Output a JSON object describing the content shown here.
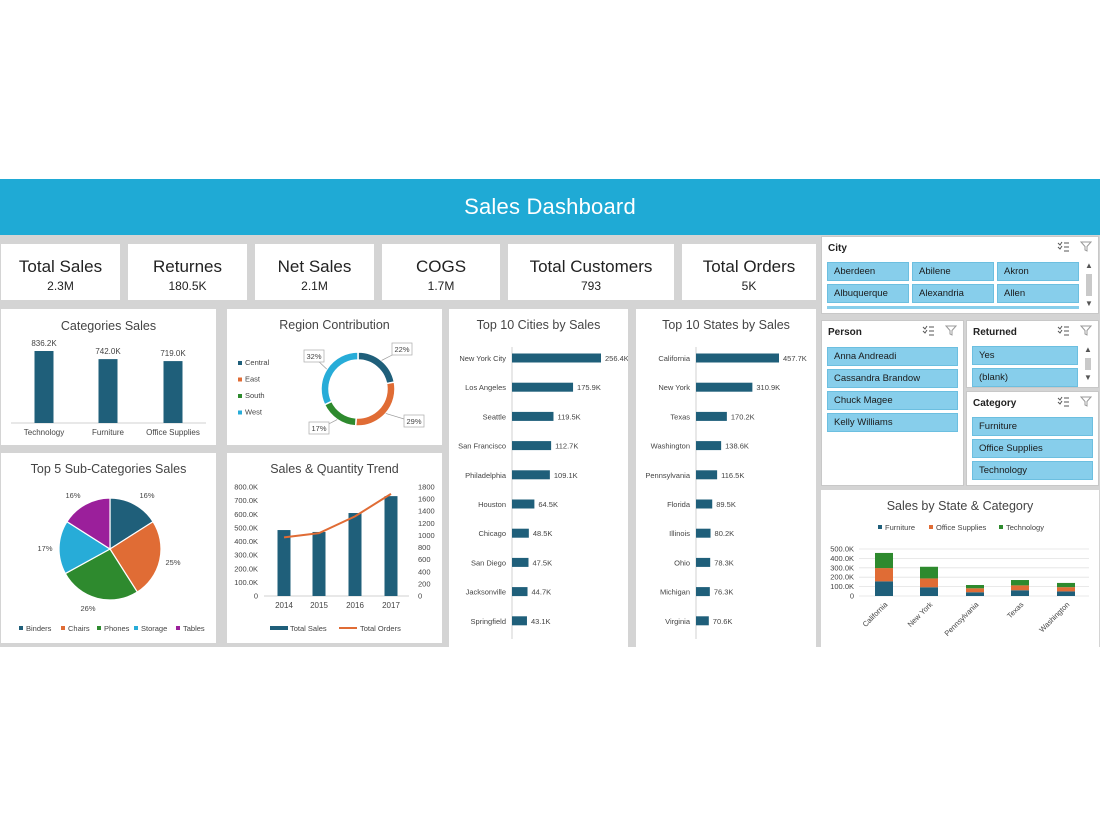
{
  "header": {
    "title": "Sales Dashboard"
  },
  "kpis": [
    {
      "label": "Total Sales",
      "value": "2.3M"
    },
    {
      "label": "Returnes",
      "value": "180.5K"
    },
    {
      "label": "Net Sales",
      "value": "2.1M"
    },
    {
      "label": "COGS",
      "value": "1.7M"
    },
    {
      "label": "Total Customers",
      "value": "793"
    },
    {
      "label": "Total Orders",
      "value": "5K"
    }
  ],
  "colors": {
    "banner": "#1faad5",
    "bar": "#1f5f7a",
    "orange": "#e06c35",
    "green": "#2e8a2e",
    "light_blue": "#27acd8",
    "purple": "#9b1f9b",
    "slicer": "#87ceeb"
  },
  "charts": {
    "categories": {
      "title": "Categories Sales"
    },
    "region": {
      "title": "Region Contribution"
    },
    "cities": {
      "title": "Top 10 Cities by Sales"
    },
    "states": {
      "title": "Top 10 States by Sales"
    },
    "subcats": {
      "title": "Top 5 Sub-Categories Sales"
    },
    "trend": {
      "title": "Sales & Quantity Trend"
    },
    "state_cat": {
      "title": "Sales by State & Category"
    }
  },
  "chart_data": [
    {
      "id": "categories",
      "type": "bar",
      "title": "Categories Sales",
      "categories": [
        "Technology",
        "Furniture",
        "Office Supplies"
      ],
      "values": [
        836.2,
        742.0,
        719.0
      ],
      "labels": [
        "836.2K",
        "742.0K",
        "719.0K"
      ]
    },
    {
      "id": "region",
      "type": "pie",
      "title": "Region Contribution",
      "categories": [
        "Central",
        "East",
        "South",
        "West"
      ],
      "values": [
        22,
        29,
        17,
        32
      ],
      "labels": [
        "22%",
        "29%",
        "17%",
        "32%"
      ]
    },
    {
      "id": "cities",
      "type": "bar",
      "title": "Top 10 Cities by Sales",
      "categories": [
        "New York City",
        "Los Angeles",
        "Seattle",
        "San Francisco",
        "Philadelphia",
        "Houston",
        "Chicago",
        "San Diego",
        "Jacksonville",
        "Springfield"
      ],
      "values": [
        256.4,
        175.9,
        119.5,
        112.7,
        109.1,
        64.5,
        48.5,
        47.5,
        44.7,
        43.1
      ],
      "labels": [
        "256.4K",
        "175.9K",
        "119.5K",
        "112.7K",
        "109.1K",
        "64.5K",
        "48.5K",
        "47.5K",
        "44.7K",
        "43.1K"
      ]
    },
    {
      "id": "states",
      "type": "bar",
      "title": "Top 10 States by Sales",
      "categories": [
        "California",
        "New York",
        "Texas",
        "Washington",
        "Pennsylvania",
        "Florida",
        "Illinois",
        "Ohio",
        "Michigan",
        "Virginia"
      ],
      "values": [
        457.7,
        310.9,
        170.2,
        138.6,
        116.5,
        89.5,
        80.2,
        78.3,
        76.3,
        70.6
      ],
      "labels": [
        "457.7K",
        "310.9K",
        "170.2K",
        "138.6K",
        "116.5K",
        "89.5K",
        "80.2K",
        "78.3K",
        "76.3K",
        "70.6K"
      ]
    },
    {
      "id": "subcats",
      "type": "pie",
      "title": "Top 5 Sub-Categories Sales",
      "categories": [
        "Binders",
        "Chairs",
        "Phones",
        "Storage",
        "Tables"
      ],
      "values": [
        16,
        25,
        26,
        17,
        16
      ],
      "labels": [
        "16%",
        "25%",
        "26%",
        "17%",
        "16%"
      ]
    },
    {
      "id": "trend",
      "type": "bar",
      "title": "Sales & Quantity Trend",
      "categories": [
        "2014",
        "2015",
        "2016",
        "2017"
      ],
      "series": [
        {
          "name": "Total Sales",
          "type": "bar",
          "values": [
            484,
            470,
            609,
            733
          ]
        },
        {
          "name": "Total Orders",
          "type": "line",
          "values": [
            969,
            1038,
            1315,
            1687
          ]
        }
      ],
      "y_ticks": [
        "800.0K",
        "700.0K",
        "600.0K",
        "500.0K",
        "400.0K",
        "300.0K",
        "200.0K",
        "100.0K",
        "0"
      ],
      "y2_ticks": [
        "1800",
        "1600",
        "1400",
        "1200",
        "1000",
        "800",
        "600",
        "400",
        "200",
        "0"
      ],
      "ylim": [
        0,
        800
      ],
      "y2lim": [
        0,
        1800
      ]
    },
    {
      "id": "state_cat",
      "type": "bar",
      "title": "Sales by State & Category",
      "categories": [
        "California",
        "New York",
        "Pennsylvania",
        "Texas",
        "Washington"
      ],
      "series": [
        {
          "name": "Furniture",
          "values": [
            156,
            93,
            40,
            61,
            49
          ]
        },
        {
          "name": "Office Supplies",
          "values": [
            141,
            94,
            42,
            52,
            45
          ]
        },
        {
          "name": "Technology",
          "values": [
            161,
            124,
            35,
            57,
            45
          ]
        }
      ],
      "y_ticks": [
        "500.0K",
        "400.0K",
        "300.0K",
        "200.0K",
        "100.0K",
        "0"
      ],
      "ylim": [
        0,
        500
      ]
    }
  ],
  "slicers": {
    "city": {
      "title": "City",
      "items": [
        "Aberdeen",
        "Abilene",
        "Akron",
        "Albuquerque",
        "Alexandria",
        "Allen"
      ]
    },
    "person": {
      "title": "Person",
      "items": [
        "Anna Andreadi",
        "Cassandra Brandow",
        "Chuck Magee",
        "Kelly Williams"
      ]
    },
    "returned": {
      "title": "Returned",
      "items": [
        "Yes",
        "(blank)"
      ]
    },
    "category": {
      "title": "Category",
      "items": [
        "Furniture",
        "Office Supplies",
        "Technology"
      ]
    }
  }
}
